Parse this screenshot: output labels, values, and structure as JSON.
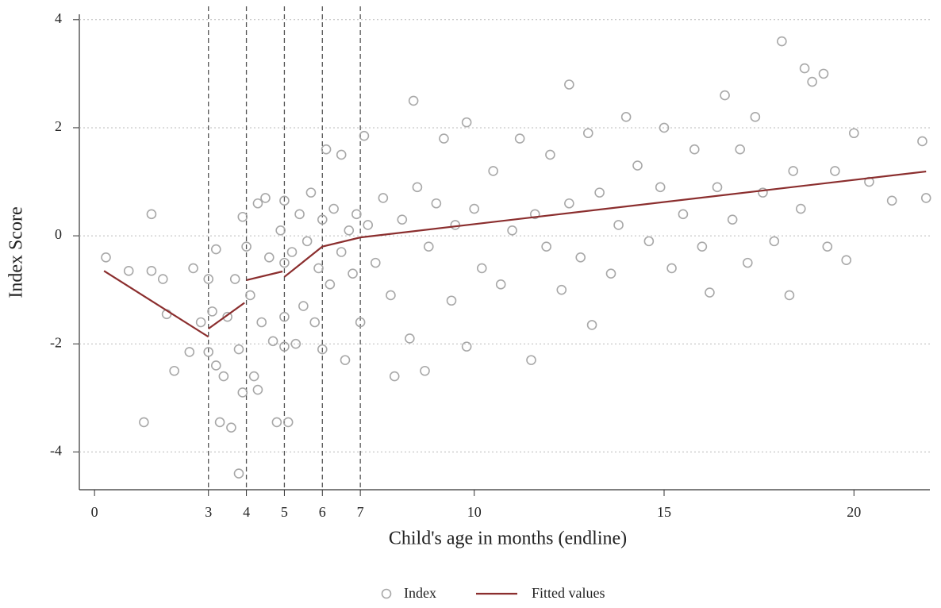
{
  "chart_data": {
    "type": "scatter",
    "x_label": "Child's age in months (endline)",
    "y_label": "Index Score",
    "xlim": [
      -0.4,
      22
    ],
    "ylim": [
      -4.7,
      4.1
    ],
    "xticks": [
      0,
      3,
      4,
      5,
      6,
      7,
      10,
      15,
      20
    ],
    "yticks": [
      -4,
      -2,
      0,
      2,
      4
    ],
    "grid": true,
    "vlines": [
      3,
      4,
      5,
      6,
      7
    ],
    "legend": "bottom",
    "series": [
      {
        "name": "Index",
        "type": "scatter",
        "color": "#a8a8a8",
        "x": [
          0.3,
          0.9,
          1.3,
          1.5,
          1.5,
          1.8,
          1.9,
          2.1,
          2.5,
          2.6,
          2.8,
          3,
          3,
          3.1,
          3.2,
          3.2,
          3.3,
          3.4,
          3.5,
          3.6,
          3.7,
          3.8,
          3.8,
          3.9,
          3.9,
          4,
          4.1,
          4.2,
          4.3,
          4.3,
          4.4,
          4.5,
          4.6,
          4.7,
          4.8,
          4.9,
          5,
          5,
          5,
          5,
          5.1,
          5.2,
          5.3,
          5.4,
          5.5,
          5.6,
          5.7,
          5.8,
          5.9,
          6,
          6,
          6.1,
          6.2,
          6.3,
          6.5,
          6.5,
          6.6,
          6.7,
          6.8,
          6.9,
          7,
          7.1,
          7.2,
          7.4,
          7.6,
          7.8,
          7.9,
          8.1,
          8.3,
          8.4,
          8.5,
          8.7,
          8.8,
          9,
          9.2,
          9.4,
          9.5,
          9.8,
          9.8,
          10,
          10.2,
          10.5,
          10.7,
          11,
          11.2,
          11.5,
          11.6,
          11.9,
          12,
          12.3,
          12.5,
          12.5,
          12.8,
          13,
          13.1,
          13.3,
          13.6,
          13.8,
          14,
          14.3,
          14.6,
          14.9,
          15,
          15.2,
          15.5,
          15.8,
          16,
          16.2,
          16.4,
          16.6,
          16.8,
          17,
          17.2,
          17.4,
          17.6,
          17.9,
          18.1,
          18.3,
          18.4,
          18.6,
          18.7,
          18.9,
          19.2,
          19.3,
          19.5,
          19.8,
          20,
          20.4,
          21,
          21.8,
          21.9
        ],
        "values": [
          -0.4,
          -0.65,
          -3.45,
          0.4,
          -0.65,
          -0.8,
          -1.45,
          -2.5,
          -2.15,
          -0.6,
          -1.6,
          -0.8,
          -2.15,
          -1.4,
          -0.25,
          -2.4,
          -3.45,
          -2.6,
          -1.5,
          -3.55,
          -0.8,
          -4.4,
          -2.1,
          -2.9,
          0.35,
          -0.2,
          -1.1,
          -2.6,
          0.6,
          -2.85,
          -1.6,
          0.7,
          -0.4,
          -1.95,
          -3.45,
          0.1,
          -0.5,
          -1.5,
          -2.05,
          0.65,
          -3.45,
          -0.3,
          -2.0,
          0.4,
          -1.3,
          -0.1,
          0.8,
          -1.6,
          -0.6,
          -2.1,
          0.3,
          1.6,
          -0.9,
          0.5,
          -0.3,
          1.5,
          -2.3,
          0.1,
          -0.7,
          0.4,
          -1.6,
          1.85,
          0.2,
          -0.5,
          0.7,
          -1.1,
          -2.6,
          0.3,
          -1.9,
          2.5,
          0.9,
          -2.5,
          -0.2,
          0.6,
          1.8,
          -1.2,
          0.2,
          2.1,
          -2.05,
          0.5,
          -0.6,
          1.2,
          -0.9,
          0.1,
          1.8,
          -2.3,
          0.4,
          -0.2,
          1.5,
          -1.0,
          2.8,
          0.6,
          -0.4,
          1.9,
          -1.65,
          0.8,
          -0.7,
          0.2,
          2.2,
          1.3,
          -0.1,
          0.9,
          2.0,
          -0.6,
          0.4,
          1.6,
          -0.2,
          -1.05,
          0.9,
          2.6,
          0.3,
          1.6,
          -0.5,
          2.2,
          0.8,
          -0.1,
          3.6,
          -1.1,
          1.2,
          0.5,
          3.1,
          2.85,
          3.0,
          -0.2,
          1.2,
          -0.45,
          1.9,
          1.0,
          0.65,
          1.75,
          0.7
        ]
      },
      {
        "name": "Fitted values",
        "type": "line",
        "color": "#8b2e2e",
        "x": [
          0.25,
          3,
          null,
          3,
          3.95,
          null,
          4,
          4.95,
          null,
          5,
          6,
          7,
          21.9
        ],
        "values": [
          -0.65,
          -1.87,
          null,
          -1.72,
          -1.24,
          null,
          -0.82,
          -0.66,
          null,
          -0.76,
          -0.2,
          -0.03,
          1.19
        ]
      }
    ]
  }
}
